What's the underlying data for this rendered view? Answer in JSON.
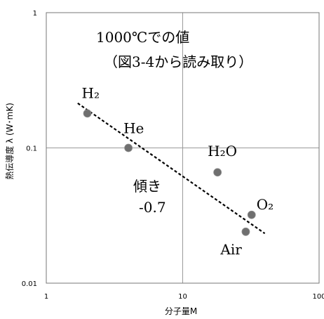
{
  "chart_data": {
    "type": "scatter",
    "xlabel": "分子量M",
    "ylabel": "熱伝導度 λ (W･mK)",
    "xscale": "log",
    "yscale": "log",
    "xlim": [
      1,
      100
    ],
    "ylim": [
      0.01,
      1
    ],
    "x_ticks": [
      "1",
      "10",
      "100"
    ],
    "y_ticks": [
      "0.01",
      "0.1",
      "1"
    ],
    "grid": true,
    "annotations": {
      "title_lines": [
        "1000℃での値",
        "（図3-4から読み取り）"
      ],
      "slope_lines": [
        "傾き",
        "-0.7"
      ]
    },
    "points": [
      {
        "label": "H2",
        "display_label": "H₂",
        "x": 2,
        "y": 0.18
      },
      {
        "label": "He",
        "display_label": "He",
        "x": 4,
        "y": 0.1
      },
      {
        "label": "H2O",
        "display_label": "H₂O",
        "x": 18,
        "y": 0.066
      },
      {
        "label": "O2",
        "display_label": "O₂",
        "x": 32,
        "y": 0.032
      },
      {
        "label": "Air",
        "display_label": "Air",
        "x": 29,
        "y": 0.024
      }
    ],
    "trend_line": {
      "x": [
        1.7,
        40
      ],
      "y": [
        0.214,
        0.0233
      ],
      "style": "dashed",
      "slope": -0.7
    }
  },
  "colors": {
    "axes": "#777777",
    "grid": "#9a9a9a",
    "points": "#6f6f6f",
    "trend": "#000000"
  }
}
